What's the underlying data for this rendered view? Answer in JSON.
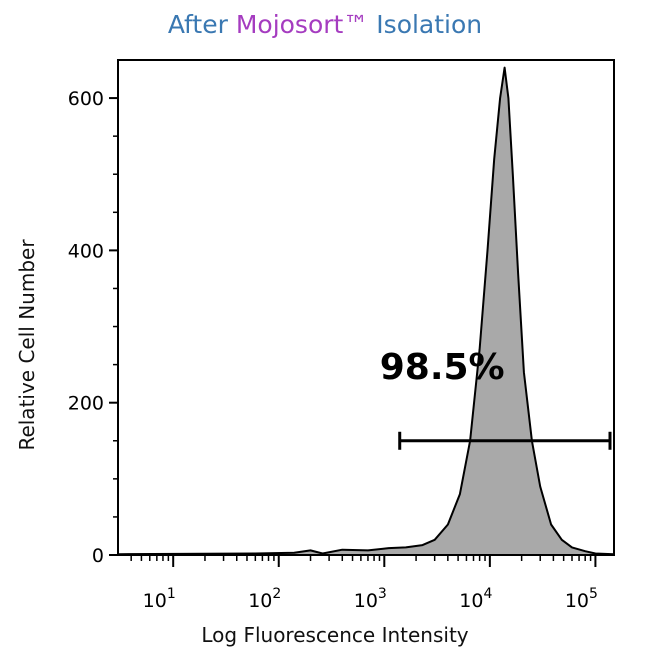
{
  "title": {
    "part1": "After ",
    "part2": "Mojosort™",
    "part3": " Isolation",
    "colors": {
      "blue": "#3a78b2",
      "purple": "#a53cc0"
    }
  },
  "chart_data": {
    "type": "histogram",
    "title": "After Mojosort™ Isolation",
    "xlabel": "Log Fluorescence Intensity",
    "ylabel": "Relative Cell Number",
    "x_scale": "log10",
    "xlim": [
      3.0,
      150000
    ],
    "ylim": [
      0,
      650
    ],
    "x_ticks": [
      {
        "value": 10,
        "base": "10",
        "exp": "1"
      },
      {
        "value": 100,
        "base": "10",
        "exp": "2"
      },
      {
        "value": 1000,
        "base": "10",
        "exp": "3"
      },
      {
        "value": 10000,
        "base": "10",
        "exp": "4"
      },
      {
        "value": 100000,
        "base": "10",
        "exp": "5"
      }
    ],
    "y_ticks": [
      0,
      200,
      400,
      600
    ],
    "histogram": {
      "fill": "#a9a9a9",
      "points": [
        [
          3.0,
          1
        ],
        [
          60,
          2
        ],
        [
          140,
          3
        ],
        [
          200,
          6
        ],
        [
          260,
          2
        ],
        [
          400,
          7
        ],
        [
          700,
          6
        ],
        [
          1100,
          9
        ],
        [
          1600,
          10
        ],
        [
          2300,
          13
        ],
        [
          3000,
          20
        ],
        [
          4000,
          40
        ],
        [
          5200,
          80
        ],
        [
          6500,
          150
        ],
        [
          8000,
          270
        ],
        [
          9500,
          400
        ],
        [
          11000,
          520
        ],
        [
          12500,
          600
        ],
        [
          13800,
          640
        ],
        [
          15000,
          600
        ],
        [
          16500,
          500
        ],
        [
          18500,
          370
        ],
        [
          21000,
          240
        ],
        [
          25000,
          150
        ],
        [
          30000,
          90
        ],
        [
          38000,
          40
        ],
        [
          48000,
          20
        ],
        [
          60000,
          10
        ],
        [
          80000,
          5
        ],
        [
          100000,
          2
        ],
        [
          150000,
          1
        ]
      ]
    },
    "gate": {
      "label": "98.5%",
      "x_start": 1400,
      "x_end": 150000,
      "y": 150
    }
  }
}
